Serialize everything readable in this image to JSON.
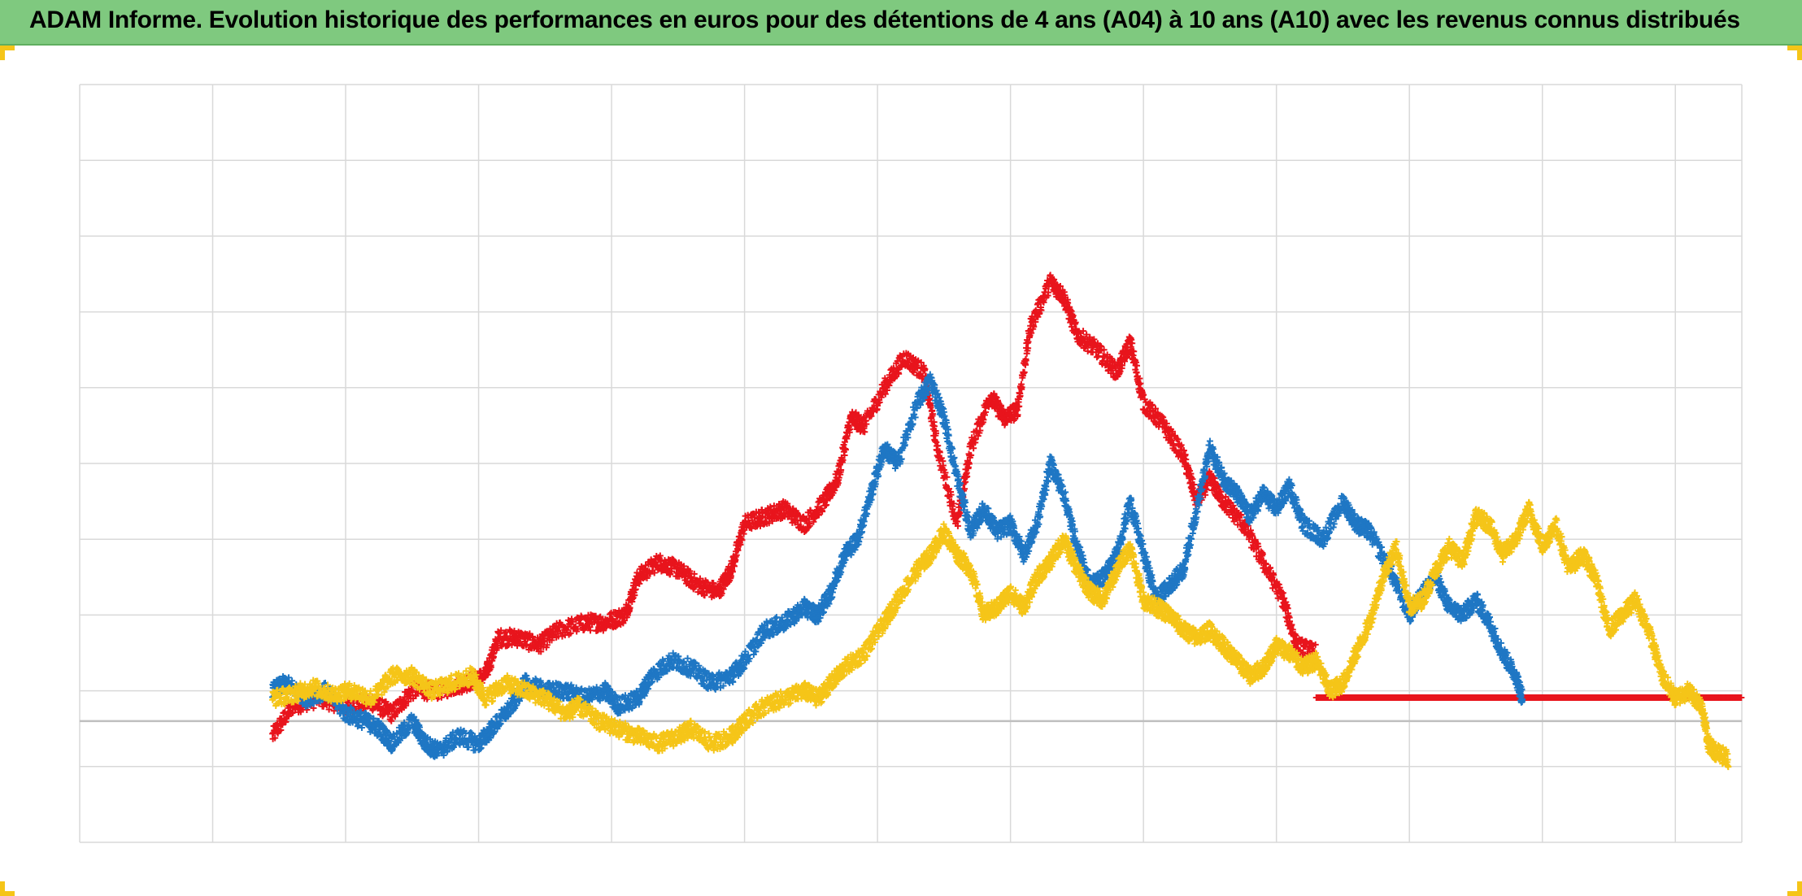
{
  "header": {
    "title": "ADAM Informe. Evolution historique des performances en euros pour des détentions de 4 ans (A04) à 10 ans (A10) avec les revenus connus distribués"
  },
  "colors": {
    "title_background": "#7fc97f",
    "corner_accent": "#f5c518",
    "grid": "#d9d9d9",
    "zero_line": "#bfbfbf",
    "red": "#e8141c",
    "blue": "#1f77c4",
    "gold": "#f5c518"
  },
  "chart_data": {
    "type": "scatter",
    "marker": "plus",
    "title": "ADAM Informe. Evolution historique des performances en euros pour des détentions de 4 ans (A04) à 10 ans (A10) avec les revenus connus distribués",
    "xlabel": "",
    "ylabel": "",
    "xlim": [
      0,
      12.5
    ],
    "ylim": [
      -1.6,
      8.4
    ],
    "grid": true,
    "legend": "none",
    "tick_labels_visible": false,
    "series": [
      {
        "color": "#e8141c",
        "points": [
          [
            1.45,
            -0.2
          ],
          [
            1.6,
            0.2
          ],
          [
            1.8,
            0.3
          ],
          [
            2.0,
            0.2
          ],
          [
            2.2,
            0.25
          ],
          [
            2.35,
            0.1
          ],
          [
            2.5,
            0.4
          ],
          [
            2.7,
            0.4
          ],
          [
            2.9,
            0.5
          ],
          [
            3.05,
            0.6
          ],
          [
            3.15,
            1.1
          ],
          [
            3.3,
            1.1
          ],
          [
            3.45,
            1.0
          ],
          [
            3.6,
            1.2
          ],
          [
            3.8,
            1.3
          ],
          [
            3.95,
            1.3
          ],
          [
            4.1,
            1.4
          ],
          [
            4.2,
            1.9
          ],
          [
            4.35,
            2.1
          ],
          [
            4.5,
            2.0
          ],
          [
            4.65,
            1.8
          ],
          [
            4.8,
            1.7
          ],
          [
            4.9,
            2.0
          ],
          [
            5.0,
            2.6
          ],
          [
            5.15,
            2.7
          ],
          [
            5.3,
            2.8
          ],
          [
            5.45,
            2.6
          ],
          [
            5.6,
            2.9
          ],
          [
            5.7,
            3.2
          ],
          [
            5.8,
            4.0
          ],
          [
            5.9,
            3.9
          ],
          [
            6.05,
            4.4
          ],
          [
            6.2,
            4.8
          ],
          [
            6.35,
            4.6
          ],
          [
            6.45,
            3.6
          ],
          [
            6.6,
            2.6
          ],
          [
            6.7,
            3.6
          ],
          [
            6.85,
            4.3
          ],
          [
            6.95,
            4.0
          ],
          [
            7.05,
            4.1
          ],
          [
            7.15,
            5.2
          ],
          [
            7.3,
            5.8
          ],
          [
            7.4,
            5.6
          ],
          [
            7.5,
            5.1
          ],
          [
            7.65,
            4.9
          ],
          [
            7.8,
            4.6
          ],
          [
            7.9,
            5.0
          ],
          [
            8.0,
            4.2
          ],
          [
            8.15,
            3.9
          ],
          [
            8.3,
            3.5
          ],
          [
            8.4,
            2.9
          ],
          [
            8.5,
            3.2
          ],
          [
            8.6,
            2.9
          ],
          [
            8.75,
            2.6
          ],
          [
            8.9,
            2.1
          ],
          [
            9.05,
            1.6
          ],
          [
            9.15,
            1.0
          ],
          [
            9.3,
            0.9
          ]
        ]
      },
      {
        "color": "#e8141c",
        "points": [
          [
            9.3,
            0.31
          ],
          [
            9.6,
            0.31
          ],
          [
            9.9,
            0.31
          ],
          [
            10.2,
            0.31
          ],
          [
            10.5,
            0.31
          ],
          [
            10.8,
            0.31
          ],
          [
            11.1,
            0.31
          ],
          [
            11.4,
            0.31
          ],
          [
            11.7,
            0.31
          ],
          [
            12.0,
            0.31
          ],
          [
            12.3,
            0.31
          ],
          [
            12.5,
            0.31
          ]
        ]
      },
      {
        "color": "#1f77c4",
        "points": [
          [
            1.45,
            0.4
          ],
          [
            1.55,
            0.5
          ],
          [
            1.7,
            0.3
          ],
          [
            1.85,
            0.4
          ],
          [
            2.0,
            0.1
          ],
          [
            2.15,
            0.0
          ],
          [
            2.25,
            -0.1
          ],
          [
            2.35,
            -0.3
          ],
          [
            2.5,
            0.0
          ],
          [
            2.6,
            -0.3
          ],
          [
            2.7,
            -0.4
          ],
          [
            2.85,
            -0.2
          ],
          [
            3.0,
            -0.3
          ],
          [
            3.1,
            -0.1
          ],
          [
            3.25,
            0.2
          ],
          [
            3.35,
            0.5
          ],
          [
            3.5,
            0.4
          ],
          [
            3.65,
            0.4
          ],
          [
            3.8,
            0.3
          ],
          [
            3.95,
            0.4
          ],
          [
            4.05,
            0.2
          ],
          [
            4.2,
            0.3
          ],
          [
            4.3,
            0.6
          ],
          [
            4.45,
            0.8
          ],
          [
            4.6,
            0.7
          ],
          [
            4.75,
            0.5
          ],
          [
            4.9,
            0.6
          ],
          [
            5.0,
            0.8
          ],
          [
            5.15,
            1.2
          ],
          [
            5.3,
            1.3
          ],
          [
            5.45,
            1.5
          ],
          [
            5.55,
            1.4
          ],
          [
            5.65,
            1.7
          ],
          [
            5.75,
            2.2
          ],
          [
            5.85,
            2.4
          ],
          [
            5.95,
            3.0
          ],
          [
            6.05,
            3.6
          ],
          [
            6.15,
            3.4
          ],
          [
            6.3,
            4.2
          ],
          [
            6.4,
            4.5
          ],
          [
            6.5,
            4.0
          ],
          [
            6.6,
            3.2
          ],
          [
            6.7,
            2.5
          ],
          [
            6.8,
            2.8
          ],
          [
            6.9,
            2.5
          ],
          [
            7.0,
            2.6
          ],
          [
            7.1,
            2.2
          ],
          [
            7.2,
            2.6
          ],
          [
            7.3,
            3.4
          ],
          [
            7.4,
            3.0
          ],
          [
            7.5,
            2.3
          ],
          [
            7.6,
            1.8
          ],
          [
            7.7,
            1.9
          ],
          [
            7.8,
            2.2
          ],
          [
            7.9,
            2.9
          ],
          [
            8.0,
            2.2
          ],
          [
            8.1,
            1.6
          ],
          [
            8.2,
            1.8
          ],
          [
            8.3,
            2.0
          ],
          [
            8.4,
            2.8
          ],
          [
            8.5,
            3.6
          ],
          [
            8.6,
            3.2
          ],
          [
            8.7,
            3.0
          ],
          [
            8.8,
            2.7
          ],
          [
            8.9,
            3.0
          ],
          [
            9.0,
            2.8
          ],
          [
            9.1,
            3.1
          ],
          [
            9.2,
            2.6
          ],
          [
            9.35,
            2.4
          ],
          [
            9.5,
            2.9
          ],
          [
            9.6,
            2.6
          ],
          [
            9.7,
            2.5
          ],
          [
            9.85,
            2.0
          ],
          [
            10.0,
            1.4
          ],
          [
            10.1,
            1.7
          ],
          [
            10.2,
            1.9
          ],
          [
            10.3,
            1.5
          ],
          [
            10.4,
            1.4
          ],
          [
            10.5,
            1.6
          ],
          [
            10.6,
            1.3
          ],
          [
            10.7,
            0.9
          ],
          [
            10.8,
            0.6
          ],
          [
            10.85,
            0.3
          ]
        ]
      },
      {
        "color": "#f5c518",
        "points": [
          [
            1.45,
            0.3
          ],
          [
            1.6,
            0.35
          ],
          [
            1.75,
            0.45
          ],
          [
            1.9,
            0.35
          ],
          [
            2.05,
            0.4
          ],
          [
            2.2,
            0.3
          ],
          [
            2.35,
            0.6
          ],
          [
            2.5,
            0.6
          ],
          [
            2.65,
            0.4
          ],
          [
            2.8,
            0.5
          ],
          [
            2.95,
            0.6
          ],
          [
            3.05,
            0.3
          ],
          [
            3.2,
            0.5
          ],
          [
            3.35,
            0.4
          ],
          [
            3.5,
            0.3
          ],
          [
            3.65,
            0.1
          ],
          [
            3.75,
            0.2
          ],
          [
            3.9,
            0.0
          ],
          [
            4.05,
            -0.1
          ],
          [
            4.2,
            -0.2
          ],
          [
            4.35,
            -0.3
          ],
          [
            4.5,
            -0.2
          ],
          [
            4.6,
            -0.1
          ],
          [
            4.75,
            -0.3
          ],
          [
            4.9,
            -0.2
          ],
          [
            5.0,
            0.0
          ],
          [
            5.15,
            0.2
          ],
          [
            5.3,
            0.3
          ],
          [
            5.45,
            0.4
          ],
          [
            5.55,
            0.3
          ],
          [
            5.65,
            0.5
          ],
          [
            5.75,
            0.7
          ],
          [
            5.9,
            0.9
          ],
          [
            6.05,
            1.3
          ],
          [
            6.15,
            1.6
          ],
          [
            6.3,
            2.0
          ],
          [
            6.4,
            2.2
          ],
          [
            6.5,
            2.5
          ],
          [
            6.6,
            2.2
          ],
          [
            6.7,
            2.0
          ],
          [
            6.8,
            1.4
          ],
          [
            6.9,
            1.5
          ],
          [
            7.0,
            1.7
          ],
          [
            7.1,
            1.5
          ],
          [
            7.2,
            1.9
          ],
          [
            7.3,
            2.1
          ],
          [
            7.4,
            2.4
          ],
          [
            7.5,
            2.0
          ],
          [
            7.6,
            1.7
          ],
          [
            7.7,
            1.6
          ],
          [
            7.8,
            2.0
          ],
          [
            7.9,
            2.3
          ],
          [
            8.0,
            1.6
          ],
          [
            8.1,
            1.5
          ],
          [
            8.2,
            1.4
          ],
          [
            8.3,
            1.2
          ],
          [
            8.4,
            1.1
          ],
          [
            8.5,
            1.2
          ],
          [
            8.6,
            1.0
          ],
          [
            8.7,
            0.8
          ],
          [
            8.8,
            0.6
          ],
          [
            8.9,
            0.7
          ],
          [
            9.0,
            1.0
          ],
          [
            9.1,
            0.9
          ],
          [
            9.2,
            0.7
          ],
          [
            9.3,
            0.8
          ],
          [
            9.4,
            0.4
          ],
          [
            9.5,
            0.5
          ],
          [
            9.6,
            0.9
          ],
          [
            9.7,
            1.3
          ],
          [
            9.8,
            1.9
          ],
          [
            9.9,
            2.3
          ],
          [
            10.0,
            1.5
          ],
          [
            10.1,
            1.6
          ],
          [
            10.2,
            2.0
          ],
          [
            10.3,
            2.3
          ],
          [
            10.4,
            2.1
          ],
          [
            10.5,
            2.7
          ],
          [
            10.6,
            2.6
          ],
          [
            10.7,
            2.2
          ],
          [
            10.8,
            2.4
          ],
          [
            10.9,
            2.8
          ],
          [
            11.0,
            2.3
          ],
          [
            11.1,
            2.6
          ],
          [
            11.2,
            2.0
          ],
          [
            11.3,
            2.2
          ],
          [
            11.4,
            1.9
          ],
          [
            11.5,
            1.2
          ],
          [
            11.6,
            1.4
          ],
          [
            11.7,
            1.6
          ],
          [
            11.8,
            1.2
          ],
          [
            11.9,
            0.6
          ],
          [
            12.0,
            0.3
          ],
          [
            12.1,
            0.4
          ],
          [
            12.2,
            0.2
          ],
          [
            12.25,
            -0.3
          ],
          [
            12.3,
            -0.4
          ],
          [
            12.4,
            -0.5
          ]
        ]
      }
    ]
  }
}
